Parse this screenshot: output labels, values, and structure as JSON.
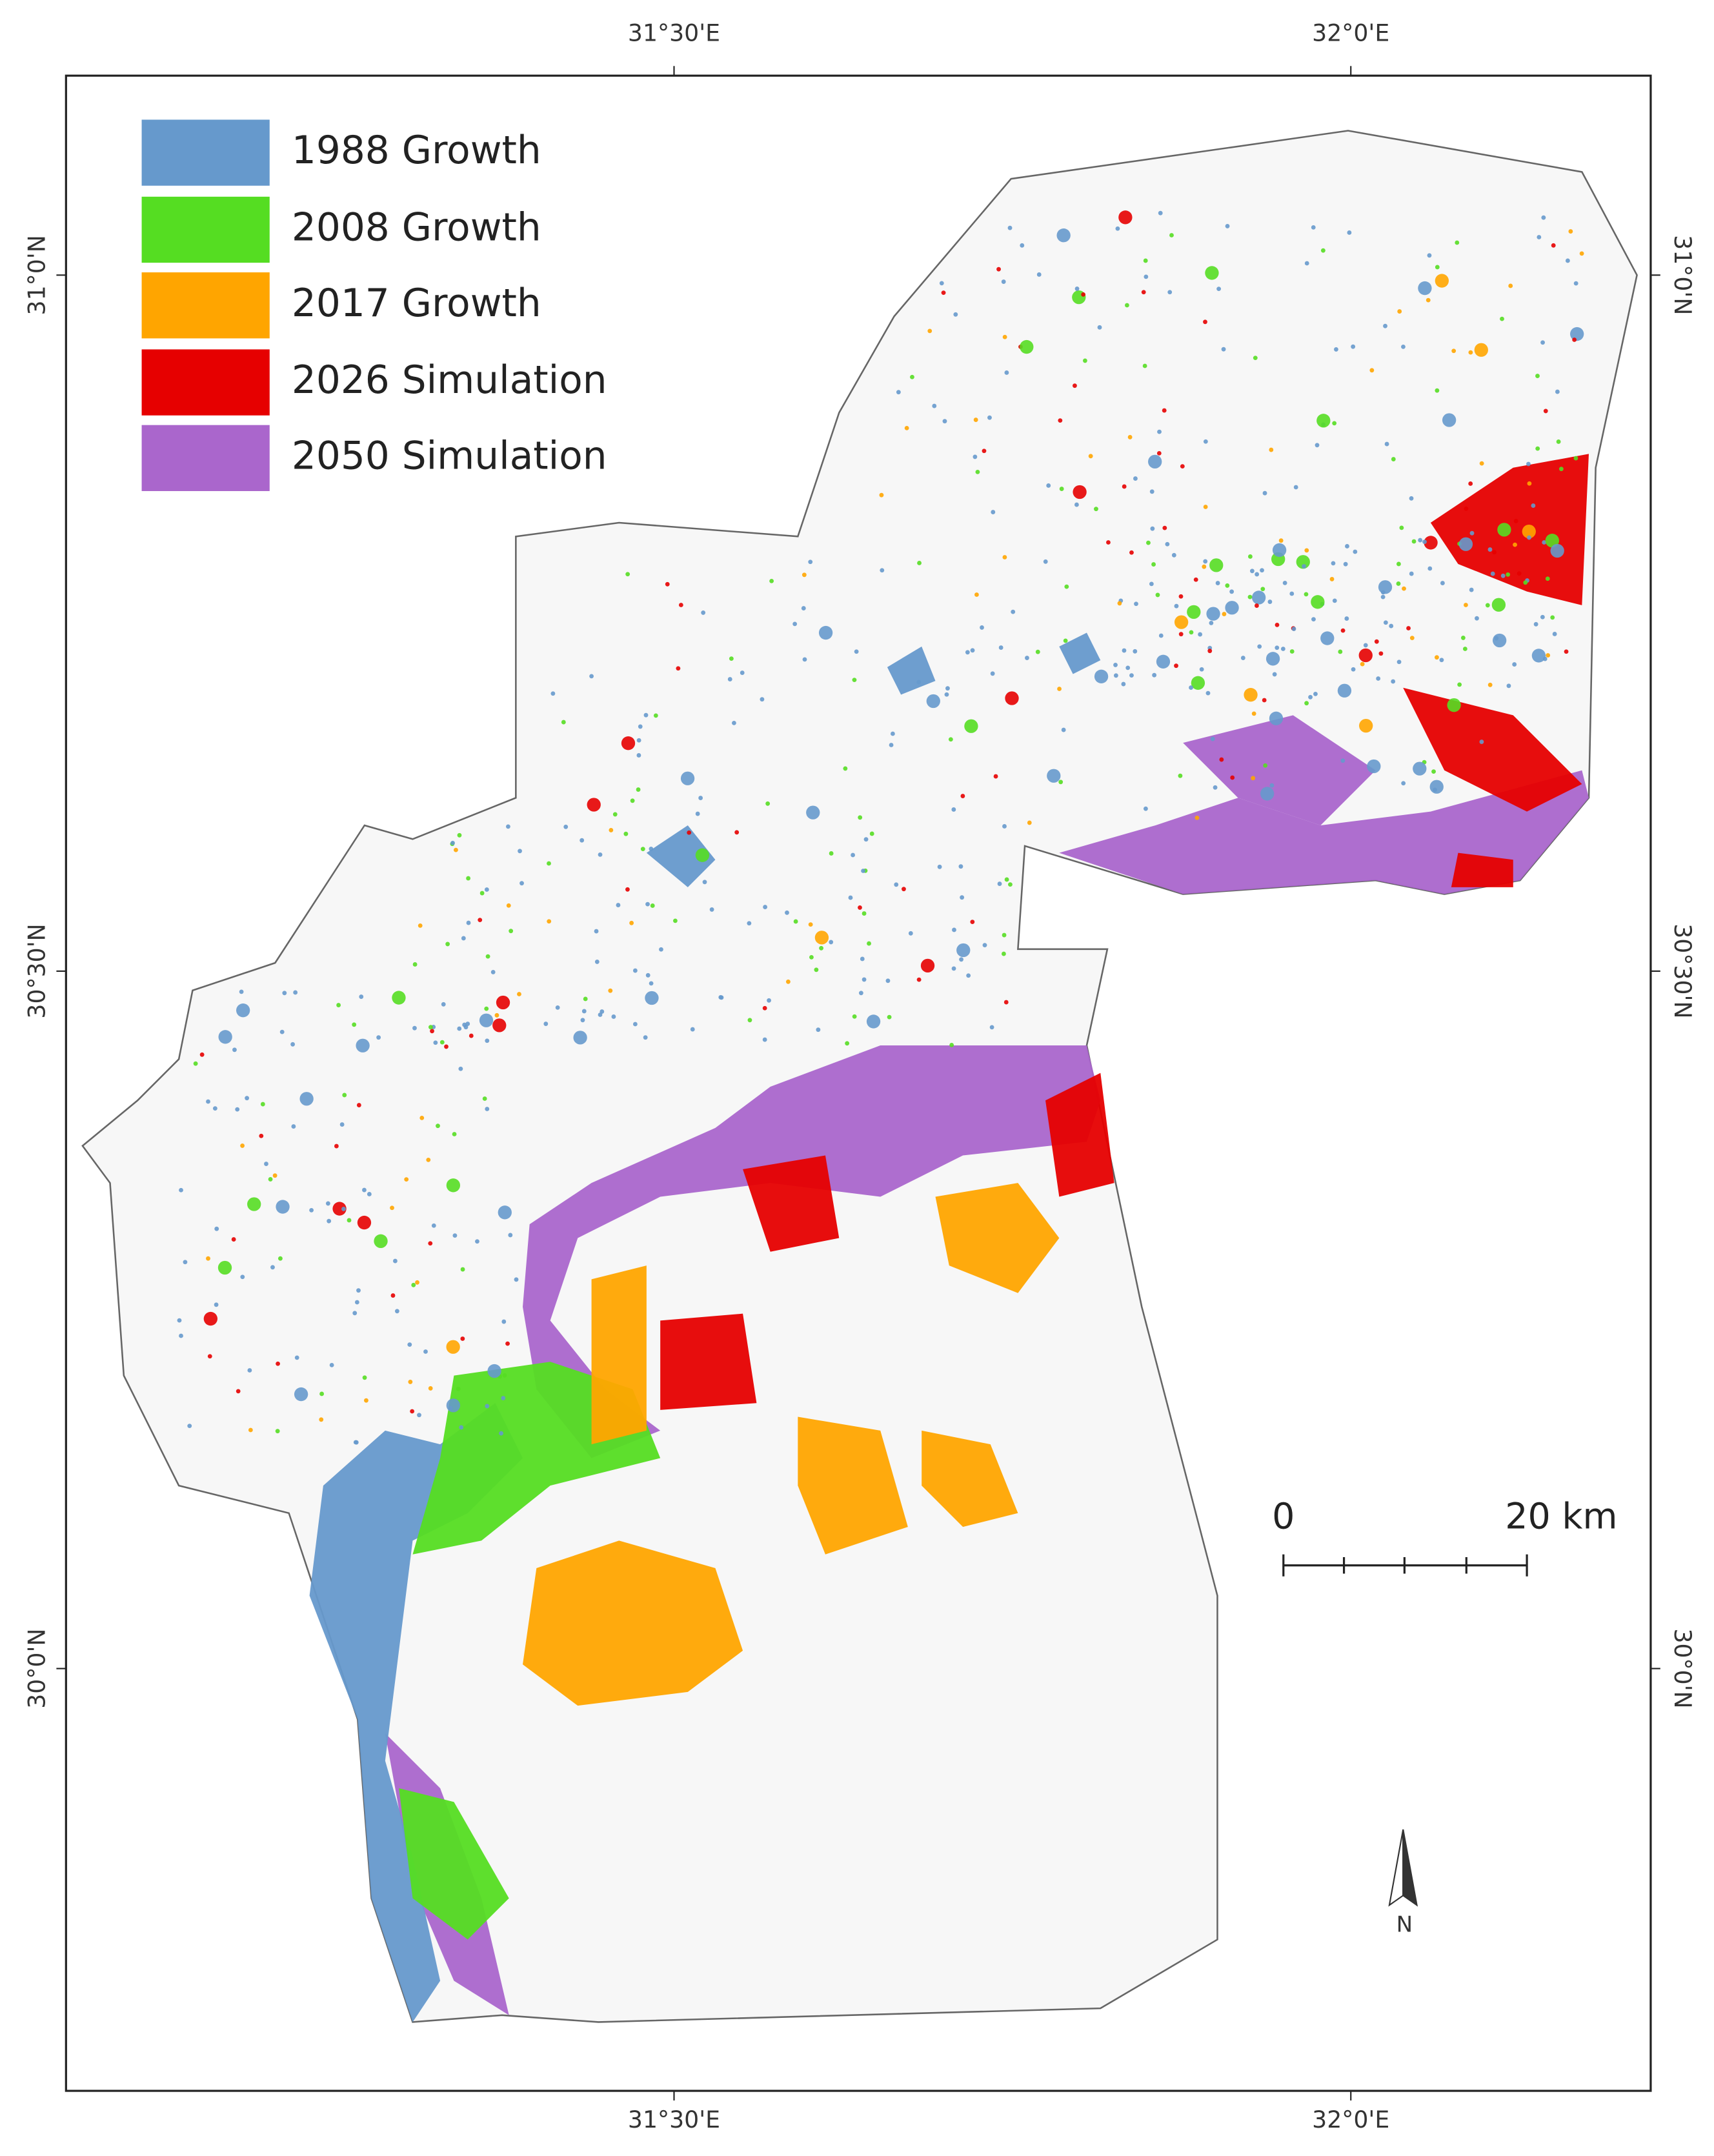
{
  "legend": [
    {
      "label": "1988 Growth",
      "color": "#6699cc"
    },
    {
      "label": "2008 Growth",
      "color": "#55dd22"
    },
    {
      "label": "2017 Growth",
      "color": "#ffa500"
    },
    {
      "label": "2026 Simulation",
      "color": "#e60000"
    },
    {
      "label": "2050 Simulation",
      "color": "#aa66cc"
    }
  ],
  "graticule": {
    "top": [
      "31°30'E",
      "32°0'E"
    ],
    "bottom": [
      "31°30'E",
      "32°0'E"
    ],
    "left": [
      "31°0'N",
      "30°30'N",
      "30°0'N"
    ],
    "right": [
      "31°0'N",
      "30°30'N",
      "30°0'N"
    ]
  },
  "north_arrow": "N",
  "scale_bar": {
    "start": "0",
    "end": "20 km"
  }
}
